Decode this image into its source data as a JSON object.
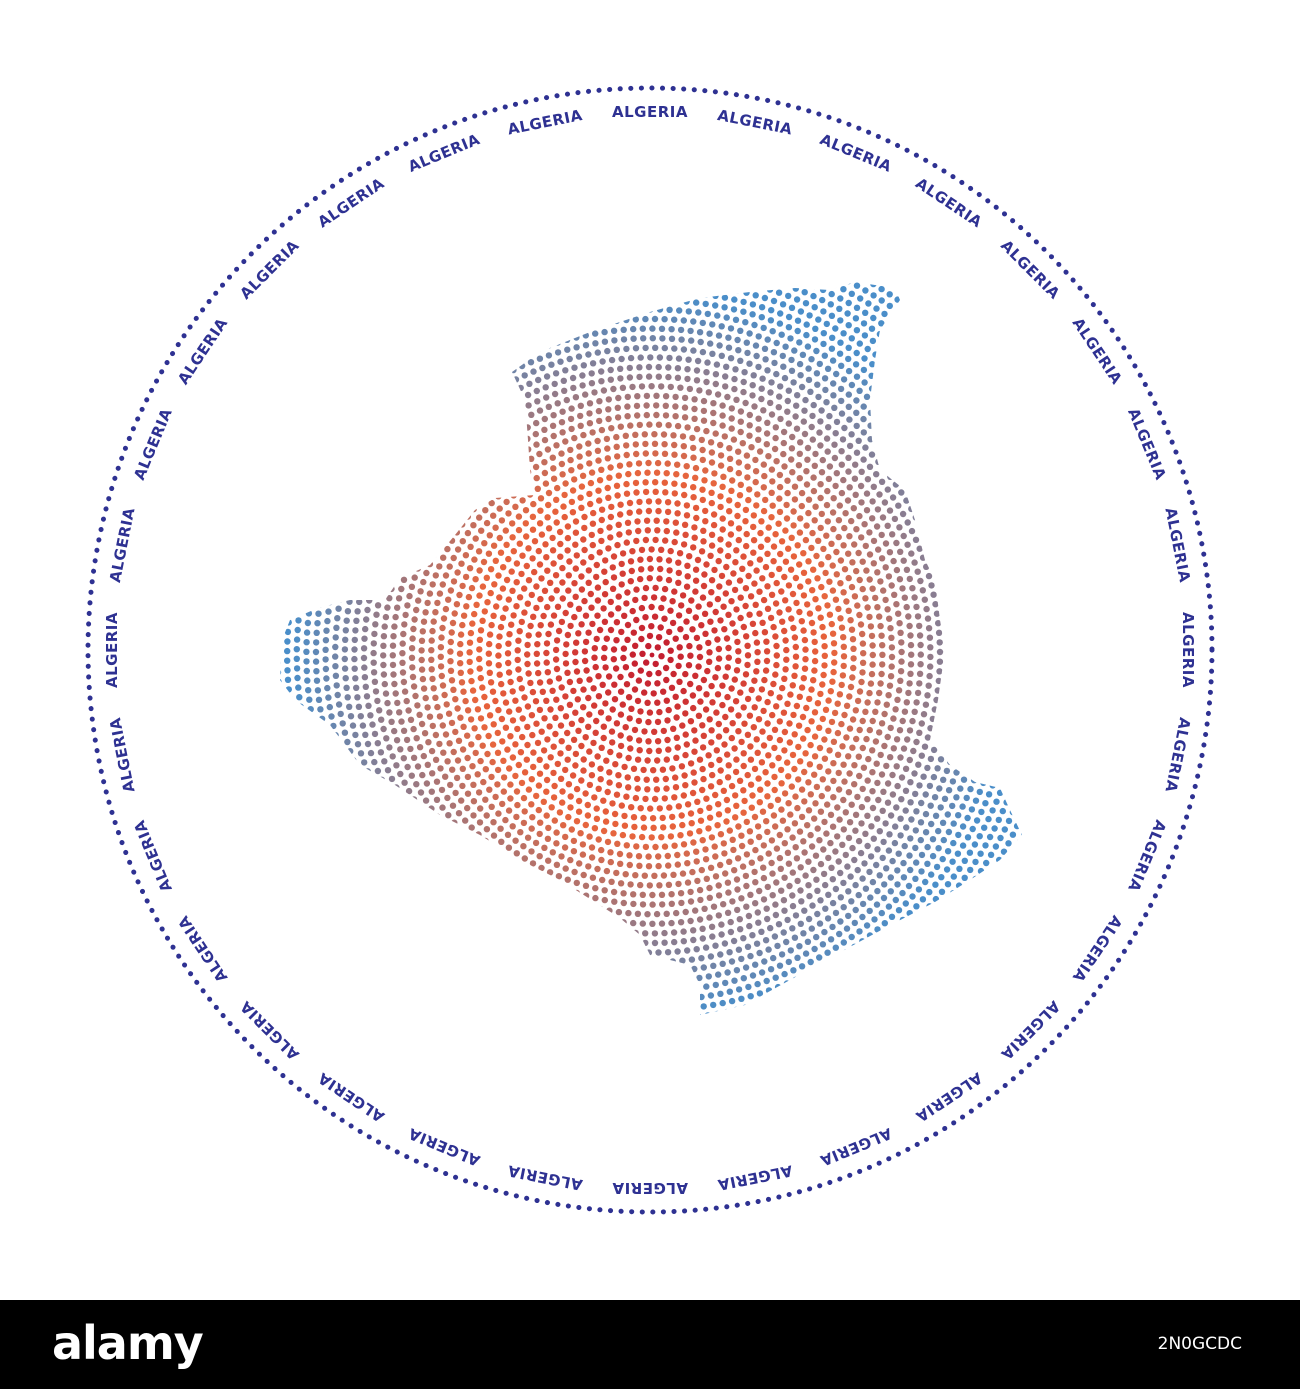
{
  "ring": {
    "label": "ALGERIA",
    "repeat_count": 32,
    "color": "#2e3192"
  },
  "map": {
    "country": "ALGERIA",
    "center_color": "#c21b2f",
    "mid_color": "#e8643c",
    "edge_color": "#4a8ec9",
    "dot_color_outer": "#5a9fd4"
  },
  "footer": {
    "brand": "alamy",
    "image_id": "2N0GCDC"
  }
}
